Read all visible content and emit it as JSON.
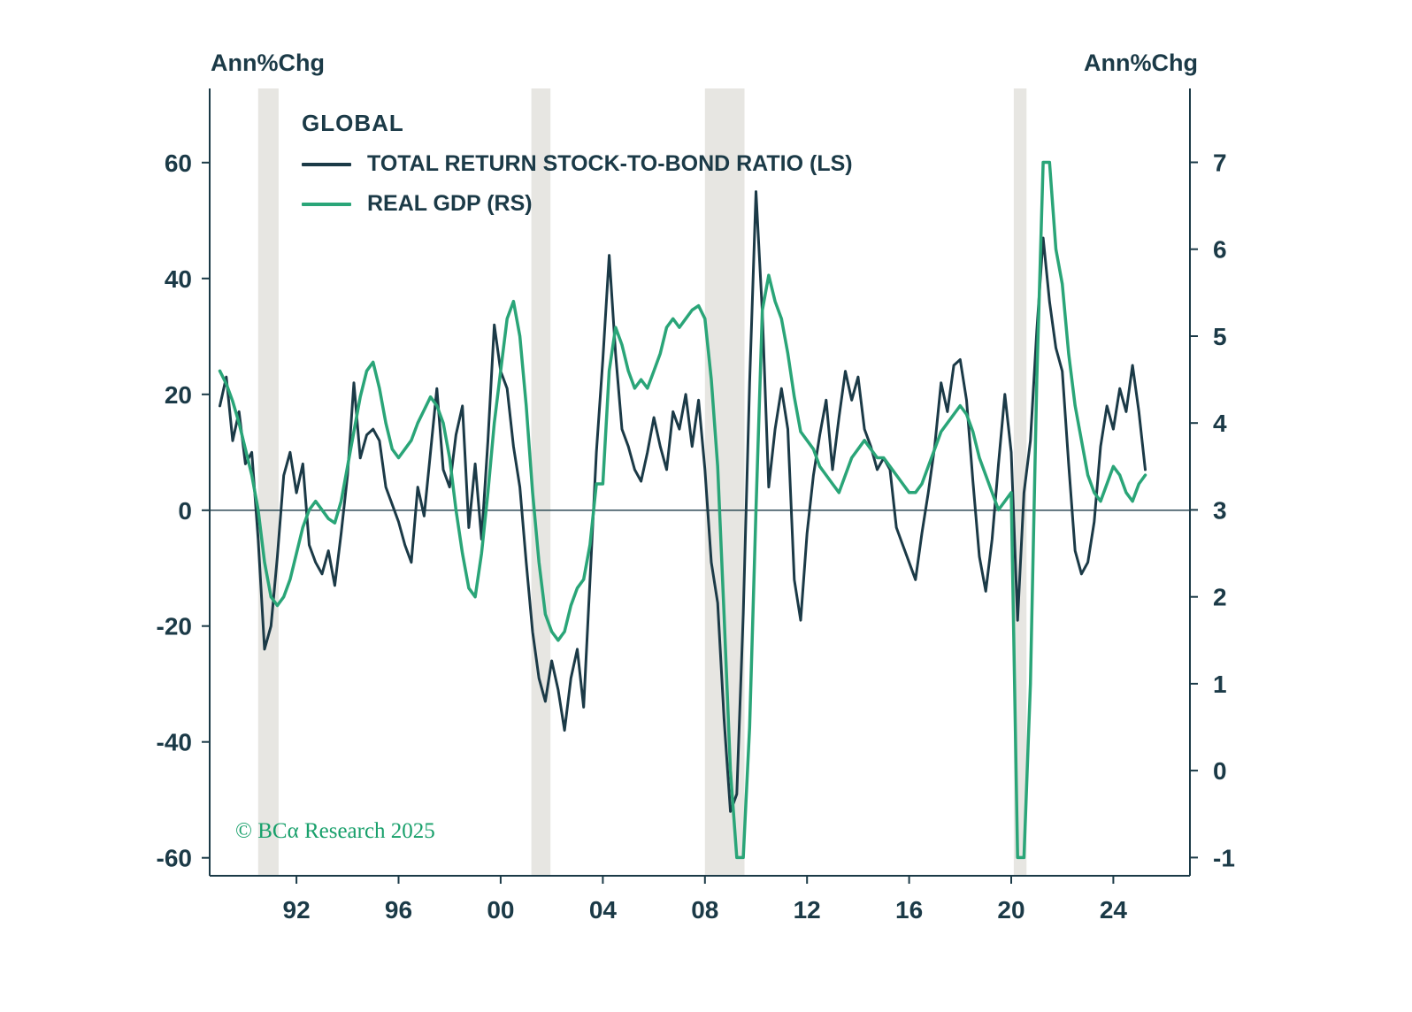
{
  "chart_data": {
    "type": "line",
    "title": "GLOBAL",
    "left_axis_label": "Ann%Chg",
    "right_axis_label": "Ann%Chg",
    "footnote": "© BCα Research 2025",
    "legend_position": "top-left-inside",
    "grid": false,
    "axis_color": "#1b3a47",
    "band_color": "#e7e6e2",
    "left_ticks": [
      60,
      40,
      20,
      0,
      -20,
      -40,
      -60
    ],
    "right_ticks": [
      7,
      6,
      5,
      4,
      3,
      2,
      1,
      0,
      -1
    ],
    "x_ticks": [
      1992,
      1996,
      2000,
      2004,
      2008,
      2012,
      2016,
      2020,
      2024
    ],
    "x_tick_labels": [
      "92",
      "96",
      "00",
      "04",
      "08",
      "12",
      "16",
      "20",
      "24"
    ],
    "x_range": [
      1988.6,
      2027.0
    ],
    "left_ylim": [
      -63.1,
      72.8
    ],
    "right_ylim": [
      -1.21,
      7.85
    ],
    "zero_line_left_value": 0,
    "recession_bands": [
      [
        1990.5,
        1991.3
      ],
      [
        2001.2,
        2001.95
      ],
      [
        2008.0,
        2009.55
      ],
      [
        2020.1,
        2020.6
      ]
    ],
    "series": [
      {
        "id": "stock-bond-ratio-line",
        "name": "TOTAL RETURN STOCK-TO-BOND RATIO (LS)",
        "axis": "left",
        "color": "#1b3a47",
        "x_start": 1989.0,
        "x_step": 0.25,
        "values": [
          18,
          23,
          12,
          17,
          8,
          10,
          -5,
          -24,
          -20,
          -8,
          6,
          10,
          3,
          8,
          -6,
          -9,
          -11,
          -7,
          -13,
          -4,
          6,
          22,
          9,
          13,
          14,
          12,
          4,
          1,
          -2,
          -6,
          -9,
          4,
          -1,
          10,
          21,
          7,
          4,
          13,
          18,
          -3,
          8,
          -5,
          12,
          32,
          24,
          21,
          11,
          4,
          -9,
          -21,
          -29,
          -33,
          -26,
          -31,
          -38,
          -29,
          -24,
          -34,
          -12,
          10,
          26,
          44,
          27,
          14,
          11,
          7,
          5,
          10,
          16,
          11,
          7,
          17,
          14,
          20,
          11,
          19,
          7,
          -9,
          -16,
          -36,
          -52,
          -49,
          -18,
          22,
          55,
          34,
          4,
          14,
          21,
          14,
          -12,
          -19,
          -4,
          6,
          13,
          19,
          7,
          16,
          24,
          19,
          23,
          14,
          11,
          7,
          9,
          7,
          -3,
          -6,
          -9,
          -12,
          -4,
          3,
          11,
          22,
          17,
          25,
          26,
          19,
          5,
          -8,
          -14,
          -5,
          8,
          20,
          10,
          -19,
          3,
          12,
          31,
          47,
          36,
          28,
          24,
          8,
          -7,
          -11,
          -9,
          -2,
          11,
          18,
          14,
          21,
          17,
          25,
          17,
          7
        ]
      },
      {
        "id": "real-gdp-line",
        "name": "REAL GDP (RS)",
        "axis": "right",
        "color": "#2aa578",
        "x_start": 1989.0,
        "x_step": 0.25,
        "values": [
          4.6,
          4.45,
          4.25,
          4.0,
          3.7,
          3.4,
          3.0,
          2.4,
          2.0,
          1.9,
          2.0,
          2.2,
          2.5,
          2.8,
          3.0,
          3.1,
          3.0,
          2.9,
          2.85,
          3.1,
          3.5,
          3.9,
          4.3,
          4.6,
          4.7,
          4.4,
          4.0,
          3.7,
          3.6,
          3.7,
          3.8,
          4.0,
          4.15,
          4.3,
          4.2,
          4.0,
          3.6,
          3.0,
          2.5,
          2.1,
          2.0,
          2.5,
          3.2,
          4.0,
          4.6,
          5.2,
          5.4,
          5.0,
          4.2,
          3.2,
          2.4,
          1.8,
          1.6,
          1.5,
          1.6,
          1.9,
          2.1,
          2.2,
          2.6,
          3.3,
          3.3,
          4.6,
          5.1,
          4.9,
          4.6,
          4.4,
          4.5,
          4.4,
          4.6,
          4.8,
          5.1,
          5.2,
          5.1,
          5.2,
          5.3,
          5.35,
          5.2,
          4.5,
          3.5,
          1.8,
          0.0,
          -1.0,
          -1.0,
          0.5,
          3.0,
          5.3,
          5.7,
          5.4,
          5.2,
          4.8,
          4.3,
          3.9,
          3.8,
          3.7,
          3.5,
          3.4,
          3.3,
          3.2,
          3.4,
          3.6,
          3.7,
          3.8,
          3.7,
          3.6,
          3.6,
          3.5,
          3.4,
          3.3,
          3.2,
          3.2,
          3.3,
          3.5,
          3.7,
          3.9,
          4.0,
          4.1,
          4.2,
          4.1,
          3.9,
          3.6,
          3.4,
          3.2,
          3.0,
          3.1,
          3.2,
          -1.0,
          -1.0,
          1.0,
          4.5,
          7.0,
          7.0,
          6.0,
          5.6,
          4.8,
          4.2,
          3.8,
          3.4,
          3.2,
          3.1,
          3.3,
          3.5,
          3.4,
          3.2,
          3.1,
          3.3,
          3.4
        ]
      }
    ]
  }
}
